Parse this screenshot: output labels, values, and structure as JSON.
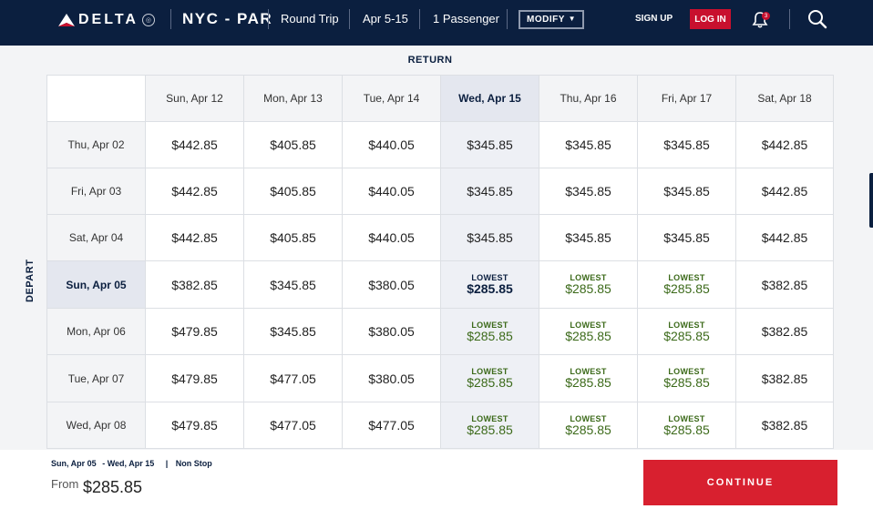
{
  "header": {
    "brand": "DELTA",
    "route": "NYC - PAR",
    "trip_type": "Round Trip",
    "dates": "Apr 5-15",
    "passengers": "1 Passenger",
    "modify_label": "MODIFY",
    "signup_label": "SIGN UP",
    "login_label": "LOG IN",
    "notification_count": "3",
    "bg_color": "#0b1f3f",
    "accent_color": "#c8102e"
  },
  "grid": {
    "return_label": "RETURN",
    "depart_label": "DEPART",
    "lowest_label": "LOWEST",
    "return_dates": [
      "Sun, Apr 12",
      "Mon, Apr 13",
      "Tue, Apr 14",
      "Wed, Apr 15",
      "Thu, Apr 16",
      "Fri, Apr 17",
      "Sat, Apr 18"
    ],
    "selected_return_index": 3,
    "selected_depart_index": 3,
    "rows": [
      {
        "depart": "Thu, Apr 02",
        "prices": [
          "$442.85",
          "$405.85",
          "$440.05",
          "$345.85",
          "$345.85",
          "$345.85",
          "$442.85"
        ],
        "lowest": [
          false,
          false,
          false,
          false,
          false,
          false,
          false
        ]
      },
      {
        "depart": "Fri, Apr 03",
        "prices": [
          "$442.85",
          "$405.85",
          "$440.05",
          "$345.85",
          "$345.85",
          "$345.85",
          "$442.85"
        ],
        "lowest": [
          false,
          false,
          false,
          false,
          false,
          false,
          false
        ]
      },
      {
        "depart": "Sat, Apr 04",
        "prices": [
          "$442.85",
          "$405.85",
          "$440.05",
          "$345.85",
          "$345.85",
          "$345.85",
          "$442.85"
        ],
        "lowest": [
          false,
          false,
          false,
          false,
          false,
          false,
          false
        ]
      },
      {
        "depart": "Sun, Apr 05",
        "prices": [
          "$382.85",
          "$345.85",
          "$380.05",
          "$285.85",
          "$285.85",
          "$285.85",
          "$382.85"
        ],
        "lowest": [
          false,
          false,
          false,
          true,
          true,
          true,
          false
        ]
      },
      {
        "depart": "Mon, Apr 06",
        "prices": [
          "$479.85",
          "$345.85",
          "$380.05",
          "$285.85",
          "$285.85",
          "$285.85",
          "$382.85"
        ],
        "lowest": [
          false,
          false,
          false,
          true,
          true,
          true,
          false
        ]
      },
      {
        "depart": "Tue, Apr 07",
        "prices": [
          "$479.85",
          "$477.05",
          "$380.05",
          "$285.85",
          "$285.85",
          "$285.85",
          "$382.85"
        ],
        "lowest": [
          false,
          false,
          false,
          true,
          true,
          true,
          false
        ]
      },
      {
        "depart": "Wed, Apr 08",
        "prices": [
          "$479.85",
          "$477.05",
          "$477.05",
          "$285.85",
          "$285.85",
          "$285.85",
          "$382.85"
        ],
        "lowest": [
          false,
          false,
          false,
          true,
          true,
          true,
          false
        ]
      }
    ]
  },
  "footer": {
    "depart_date": "Sun, Apr 05",
    "return_date": "- Wed, Apr 15",
    "divider": "|",
    "stops": "Non Stop",
    "from_label": "From",
    "from_price": "$285.85",
    "continue_label": "CONTINUE",
    "continue_color": "#d8202f"
  },
  "icons": {
    "logo": "delta-widget-icon",
    "notification": "bell-icon",
    "search": "search-icon",
    "dropdown": "caret-down-icon"
  }
}
